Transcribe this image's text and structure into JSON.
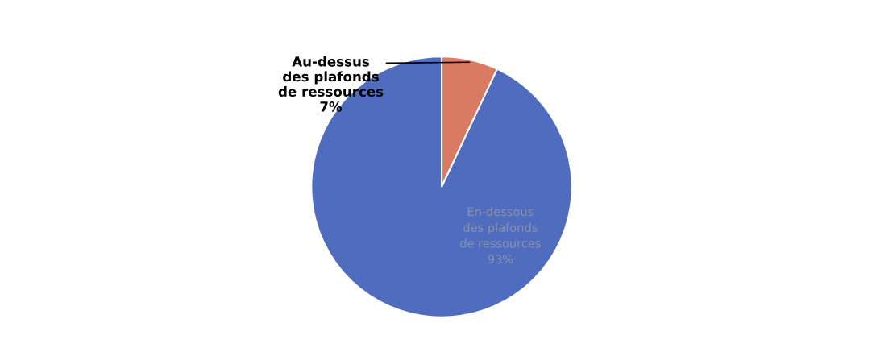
{
  "chart_data": {
    "type": "pie",
    "categories": [
      "Au-dessus des plafonds de ressources",
      "En-dessous des plafonds de ressources"
    ],
    "values": [
      7,
      93
    ],
    "value_labels": [
      "7%",
      "93%"
    ],
    "colors": [
      "#d97a62",
      "#4f6cbf"
    ]
  }
}
